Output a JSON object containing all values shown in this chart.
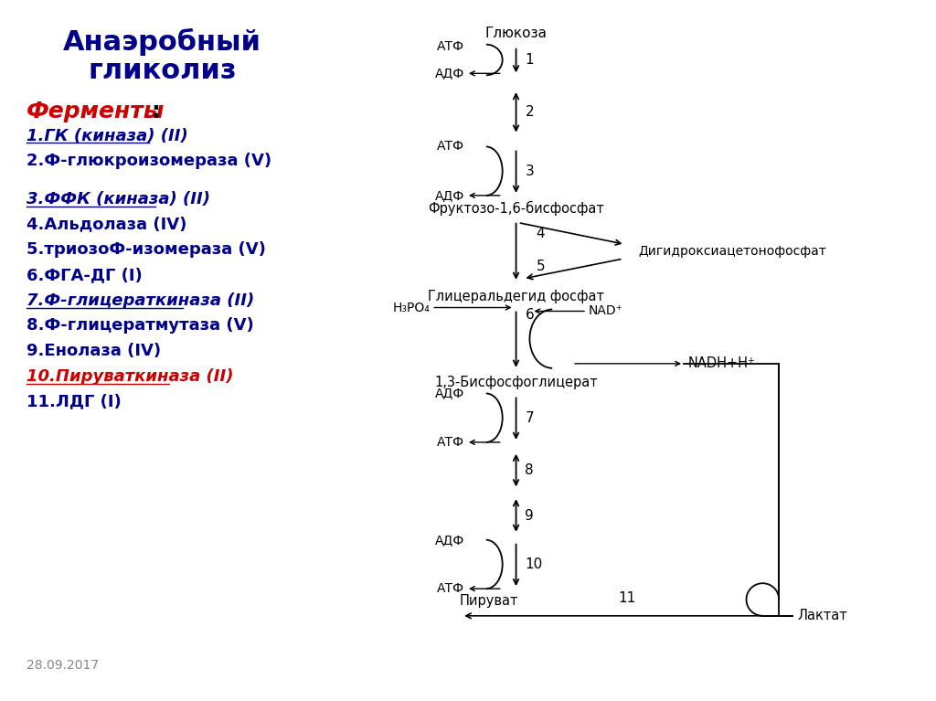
{
  "title_line1": "Анаэробный",
  "title_line2": "гликолиз",
  "title_color": "#00008B",
  "bg_color": "#ffffff",
  "date_text": "28.09.2017",
  "items": [
    {
      "text": "1.ГК (киназа) (II)",
      "color": "#00008B",
      "underline": true,
      "italic": true,
      "bold": true
    },
    {
      "text": "2.Ф-глюкроизомераза (V)",
      "color": "#00008B",
      "underline": false,
      "italic": false,
      "bold": true
    },
    {
      "text": "",
      "spacer": true
    },
    {
      "text": "3.ФФК (киназа) (II)",
      "color": "#00008B",
      "underline": true,
      "italic": true,
      "bold": true
    },
    {
      "text": "4.Альдолаза (IV)",
      "color": "#00008B",
      "underline": false,
      "italic": false,
      "bold": true
    },
    {
      "text": "5.триозоФ-изомераза (V)",
      "color": "#00008B",
      "underline": false,
      "italic": false,
      "bold": true
    },
    {
      "text": "6.ФГА-ДГ (I)",
      "color": "#00008B",
      "underline": false,
      "italic": false,
      "bold": true
    },
    {
      "text": "7.Ф-глицераткиназа (II)",
      "color": "#00008B",
      "underline": true,
      "italic": true,
      "bold": true
    },
    {
      "text": "8.Ф-глицератмутаза (V)",
      "color": "#00008B",
      "underline": false,
      "italic": false,
      "bold": true
    },
    {
      "text": "9.Енолаза (IV)",
      "color": "#00008B",
      "underline": false,
      "italic": false,
      "bold": true
    },
    {
      "text": "10.Пируваткиназа (II)",
      "color": "#CC0000",
      "underline": true,
      "italic": true,
      "bold": true
    },
    {
      "text": "11.ЛДГ (I)",
      "color": "#00008B",
      "underline": false,
      "italic": false,
      "bold": true
    }
  ]
}
